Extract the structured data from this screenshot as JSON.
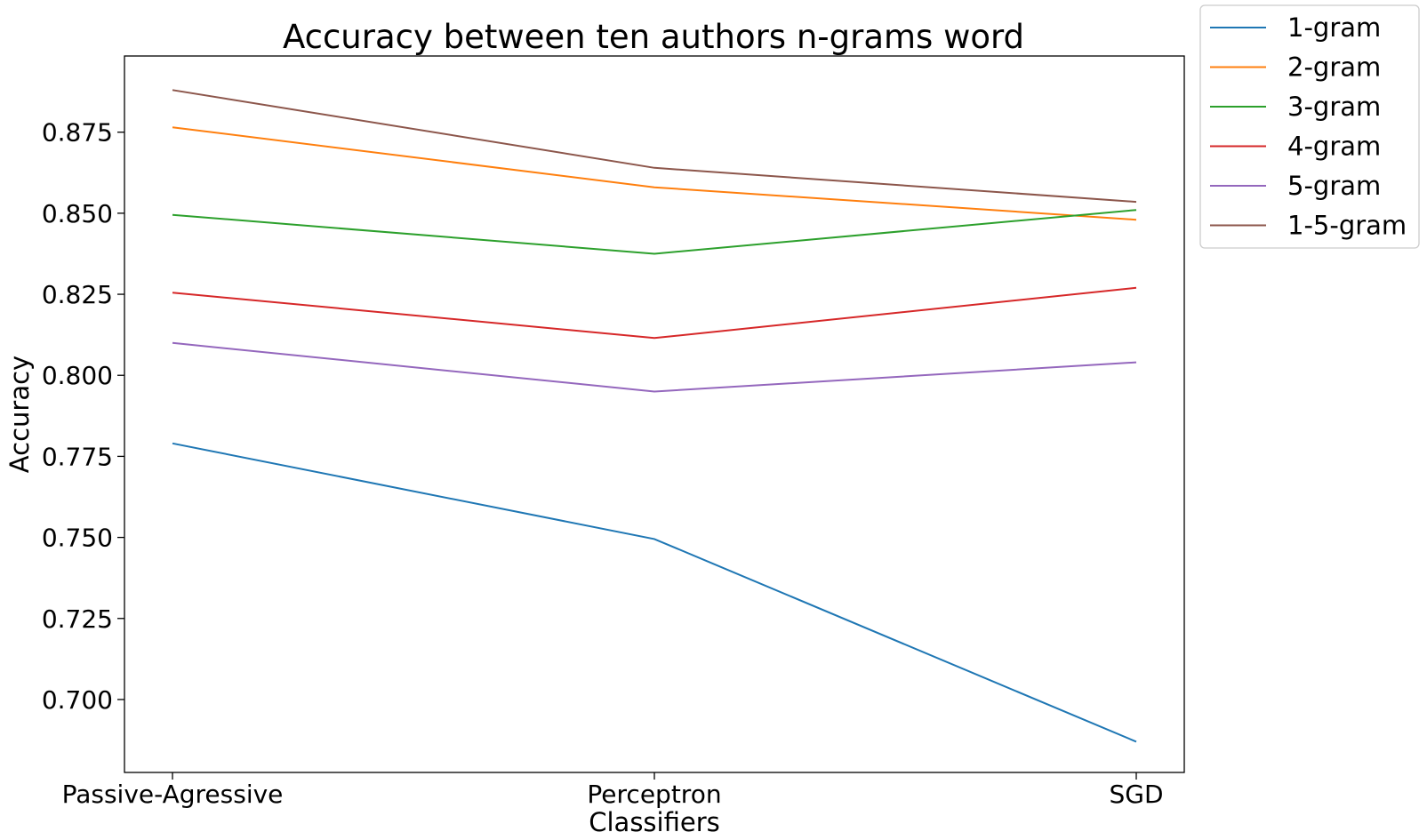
{
  "chart_data": {
    "type": "line",
    "title": "Accuracy between ten authors n-grams word",
    "xlabel": "Classifiers",
    "ylabel": "Accuracy",
    "categories": [
      "Passive-Agressive",
      "Perceptron",
      "SGD"
    ],
    "ylim": [
      0.6775,
      0.8985
    ],
    "yticks": [
      "0.700",
      "0.725",
      "0.750",
      "0.775",
      "0.800",
      "0.825",
      "0.850",
      "0.875"
    ],
    "grid": false,
    "legend_position": "outside-top-right",
    "series": [
      {
        "name": "1-gram",
        "color": "#1f77b4",
        "values": [
          0.779,
          0.7495,
          0.687
        ]
      },
      {
        "name": "2-gram",
        "color": "#ff7f0e",
        "values": [
          0.8765,
          0.858,
          0.848
        ]
      },
      {
        "name": "3-gram",
        "color": "#2ca02c",
        "values": [
          0.8495,
          0.8375,
          0.851
        ]
      },
      {
        "name": "4-gram",
        "color": "#d62728",
        "values": [
          0.8255,
          0.8115,
          0.827
        ]
      },
      {
        "name": "5-gram",
        "color": "#9467bd",
        "values": [
          0.81,
          0.795,
          0.804
        ]
      },
      {
        "name": "1-5-gram",
        "color": "#8c564b",
        "values": [
          0.888,
          0.864,
          0.8535
        ]
      }
    ]
  }
}
